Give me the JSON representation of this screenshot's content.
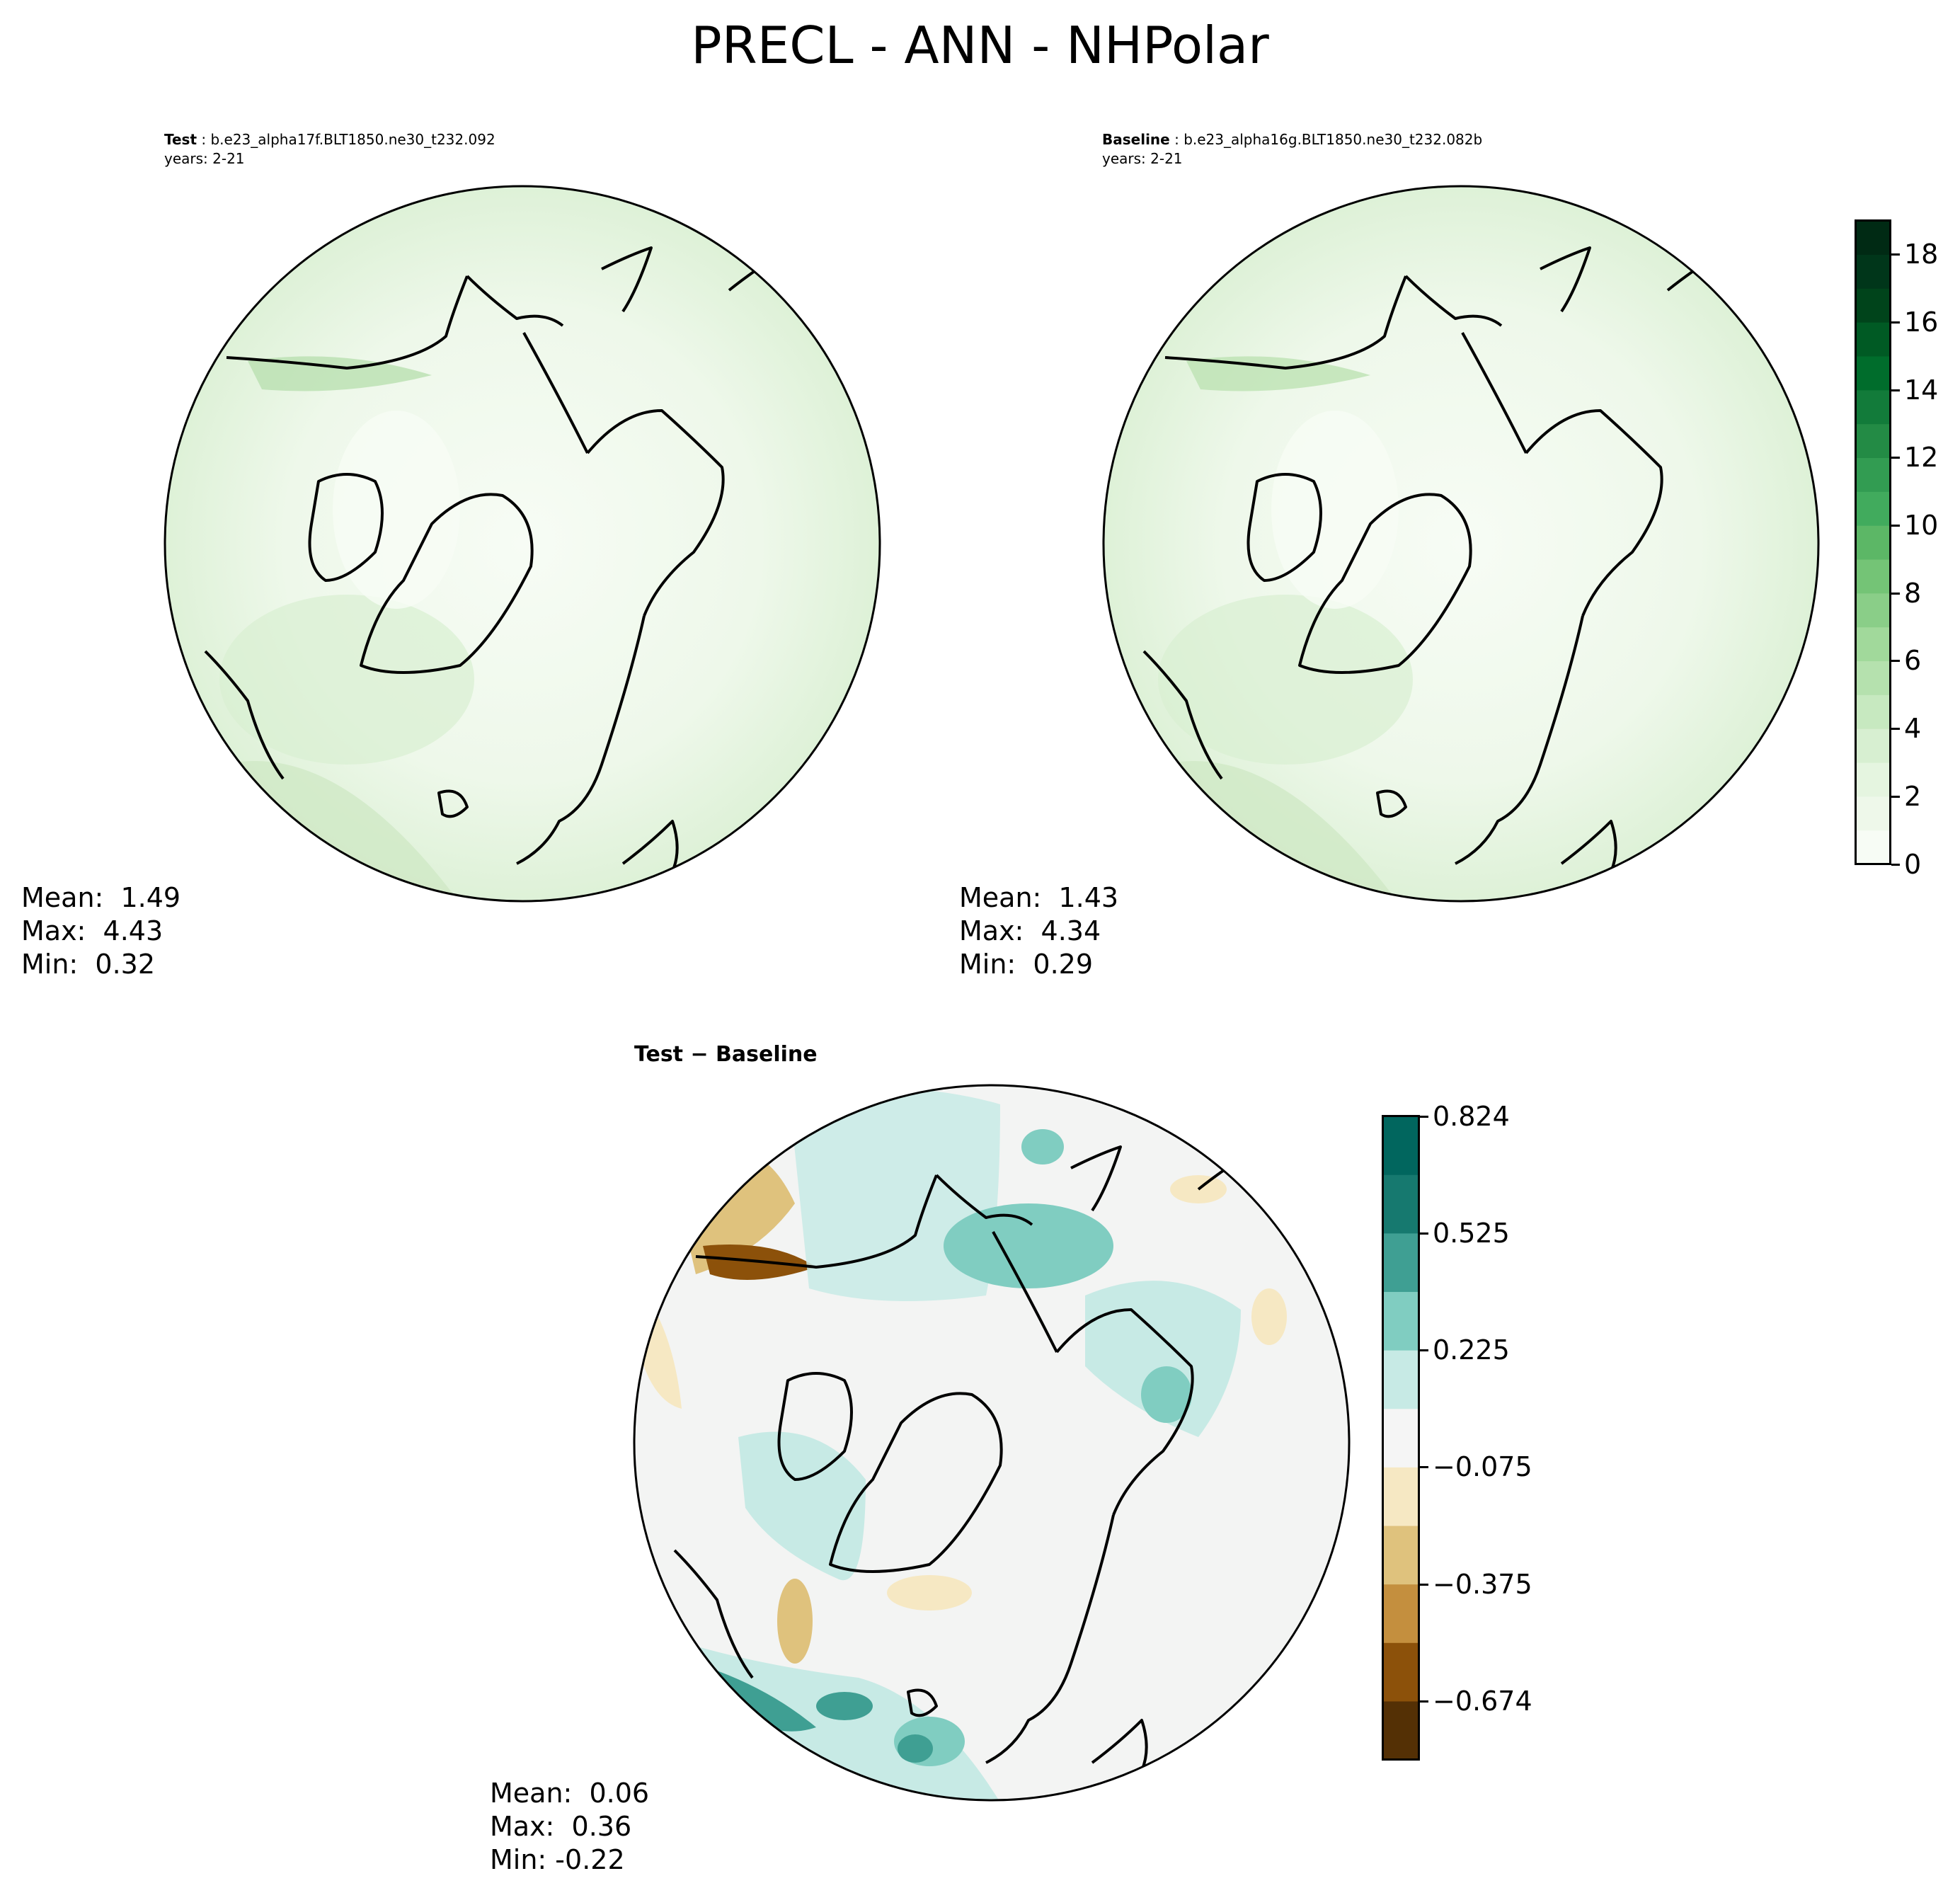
{
  "figure": {
    "title": "PRECL - ANN - NHPolar"
  },
  "panels": {
    "test": {
      "label": "Test",
      "case": "b.e23_alpha17f.BLT1850.ne30_t232.092",
      "years": "years: 2-21",
      "stats": {
        "mean": "Mean:  1.49",
        "max": "Max:  4.43",
        "min": "Min:  0.32"
      }
    },
    "baseline": {
      "label": "Baseline",
      "case": "b.e23_alpha16g.BLT1850.ne30_t232.082b",
      "years": "years: 2-21",
      "stats": {
        "mean": "Mean:  1.43",
        "max": "Max:  4.34",
        "min": "Min:  0.29"
      }
    },
    "diff": {
      "title": "Test − Baseline",
      "stats": {
        "mean": "Mean:  0.06",
        "max": "Max:  0.36",
        "min": "Min: -0.22"
      }
    }
  },
  "colorbars": {
    "main": {
      "ticks": [
        "0",
        "2",
        "4",
        "6",
        "8",
        "10",
        "12",
        "14",
        "16",
        "18"
      ],
      "range": [
        0,
        19
      ],
      "colors": [
        "#f7fcf5",
        "#eef8ea",
        "#e5f5e0",
        "#d7efd1",
        "#c7e9c0",
        "#b5e1ae",
        "#a1d99b",
        "#8ace88",
        "#74c476",
        "#5cb766",
        "#41ab5d",
        "#329c52",
        "#238b45",
        "#127b3a",
        "#006d2c",
        "#005a24",
        "#00441b",
        "#00361a",
        "#002a14"
      ]
    },
    "diff": {
      "ticks": [
        "0.824",
        "0.525",
        "0.225",
        "−0.075",
        "−0.375",
        "−0.674"
      ],
      "colors": [
        "#01665e",
        "#16796f",
        "#3f9f93",
        "#80cdc1",
        "#c7eae5",
        "#f5f5f5",
        "#f6e8c3",
        "#dfc27d",
        "#c48f3e",
        "#8c510a",
        "#543005"
      ]
    }
  },
  "colors": {
    "land_outline": "#000000",
    "test_fill": "#e3f3dc",
    "baseline_fill": "#e3f3dc",
    "diff_fill": "#f3f4f3"
  }
}
